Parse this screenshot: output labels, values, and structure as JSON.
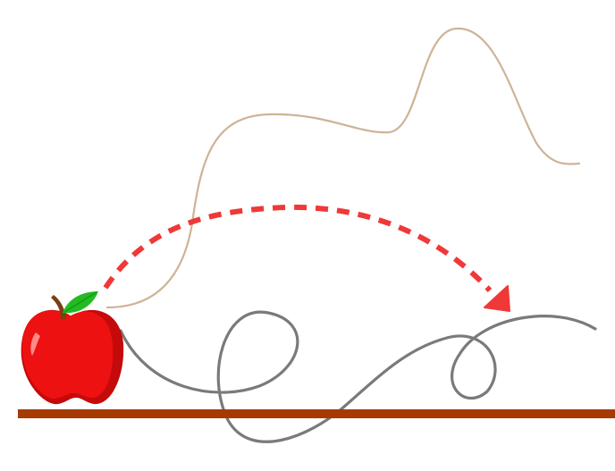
{
  "scene": {
    "background": "#ffffff",
    "objects": {
      "apple": {
        "icon": "apple-icon",
        "body_color": "#ee1111",
        "shade_color": "#c40a0a",
        "leaf_color": "#22bb22",
        "stem_color": "#7a3f12"
      },
      "ground": {
        "color": "#a63a00"
      }
    },
    "paths": [
      {
        "id": "tan-path",
        "color": "#cdb497"
      },
      {
        "id": "gray-path",
        "color": "#7a7a7a"
      },
      {
        "id": "red-dashed-arc",
        "color": "#f03838",
        "style": "dashed",
        "arrow": "arrow-head-icon"
      }
    ]
  }
}
